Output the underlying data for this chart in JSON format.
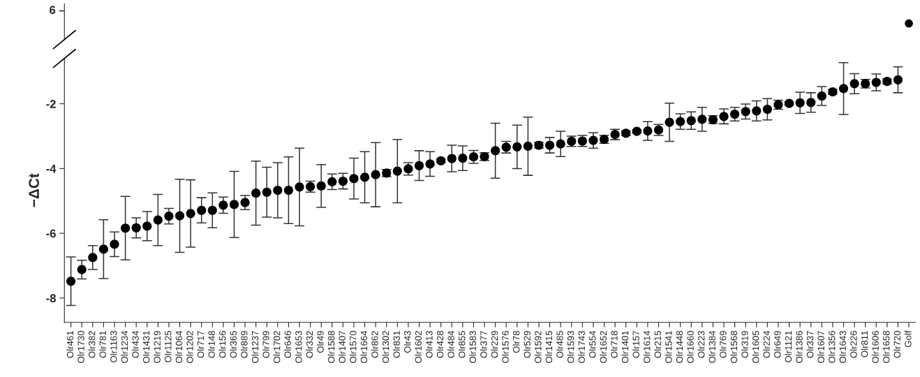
{
  "chart_data": {
    "type": "scatter",
    "ylabel": "−ΔCt",
    "annotations": [
      "6"
    ],
    "categories": [
      "Olr461",
      "Olr1730",
      "Olr382",
      "Olr781",
      "Olr1163",
      "Olr1234",
      "Olr434",
      "Olr1431",
      "Olr1219",
      "Olr1125",
      "Olr1064",
      "Olr1202",
      "Olr717",
      "Olr148",
      "Olr156",
      "Olr365",
      "Olr889",
      "Olr1237",
      "Olr799",
      "Olr1702",
      "Olr646",
      "Olr1653",
      "Olr332",
      "Olr49",
      "Olr1588",
      "Olr1407",
      "Olr1570",
      "Olr1664",
      "Olr862",
      "Olr1302",
      "Olr831",
      "Olr43",
      "Olr1602",
      "Olr413",
      "Olr428",
      "Olr484",
      "Olr855",
      "Olr1583",
      "Olr377",
      "Olr229",
      "Olr1576",
      "Olr78",
      "Olr529",
      "Olr1592",
      "Olr1415",
      "Olr485",
      "Olr1593",
      "Olr1743",
      "Olr554",
      "Olr1652",
      "Olr718",
      "Olr1401",
      "Olr157",
      "Olr1614",
      "Olr215",
      "Olr1541",
      "Olr1448",
      "Olr1660",
      "Olr223",
      "Olr1384",
      "Olr769",
      "Olr1568",
      "Olr319",
      "Olr1605",
      "Olr224",
      "Olr649",
      "Olr1121",
      "Olr1386",
      "Olr337",
      "Olr1607",
      "Olr1356",
      "Olr1643",
      "Olr226",
      "Olr811",
      "Olr1606",
      "Olr1658",
      "Olr720",
      "Golf"
    ],
    "series": [
      {
        "color": "#000000",
        "values": [
          -7.48,
          -7.12,
          -6.75,
          -6.49,
          -6.34,
          -5.84,
          -5.83,
          -5.78,
          -5.59,
          -5.47,
          -5.46,
          -5.39,
          -5.29,
          -5.29,
          -5.13,
          -5.11,
          -5.05,
          -4.76,
          -4.73,
          -4.67,
          -4.67,
          -4.57,
          -4.56,
          -4.54,
          -4.41,
          -4.39,
          -4.31,
          -4.27,
          -4.19,
          -4.14,
          -4.08,
          -4.01,
          -3.91,
          -3.86,
          -3.76,
          -3.69,
          -3.68,
          -3.64,
          -3.63,
          -3.45,
          -3.34,
          -3.33,
          -3.31,
          -3.28,
          -3.28,
          -3.24,
          -3.16,
          -3.15,
          -3.13,
          -3.1,
          -2.95,
          -2.91,
          -2.85,
          -2.84,
          -2.81,
          -2.57,
          -2.55,
          -2.52,
          -2.48,
          -2.49,
          -2.39,
          -2.32,
          -2.24,
          -2.22,
          -2.17,
          -2.03,
          -1.99,
          -1.97,
          -1.96,
          -1.76,
          -1.63,
          -1.53,
          -1.38,
          -1.38,
          -1.34,
          -1.31,
          -1.26,
          null
        ],
        "errors": [
          0.75,
          0.29,
          0.37,
          0.91,
          0.38,
          0.98,
          0.31,
          0.45,
          0.79,
          0.24,
          1.13,
          1.04,
          0.39,
          0.54,
          0.25,
          1.02,
          0.22,
          0.99,
          0.77,
          0.85,
          1.03,
          1.2,
          0.17,
          0.66,
          0.24,
          0.24,
          0.63,
          0.79,
          0.99,
          0.11,
          0.98,
          0.19,
          0.46,
          0.38,
          0.05,
          0.41,
          0.38,
          0.2,
          0.12,
          0.85,
          0.18,
          0.67,
          0.9,
          0.09,
          0.24,
          0.39,
          0.16,
          0.17,
          0.24,
          0.12,
          0.16,
          0.07,
          0.05,
          0.29,
          0.17,
          0.59,
          0.24,
          0.27,
          0.37,
          0.12,
          0.23,
          0.21,
          0.23,
          0.31,
          0.33,
          0.14,
          0.05,
          0.33,
          0.3,
          0.29,
          0.07,
          0.8,
          0.31,
          0.13,
          0.26,
          0.08,
          0.4,
          null
        ]
      }
    ],
    "ylim": [
      -8.75,
      -0.6
    ],
    "yticks": [
      -8,
      -6,
      -4,
      -2
    ],
    "marker": "circle",
    "grid": false,
    "legend": false
  }
}
